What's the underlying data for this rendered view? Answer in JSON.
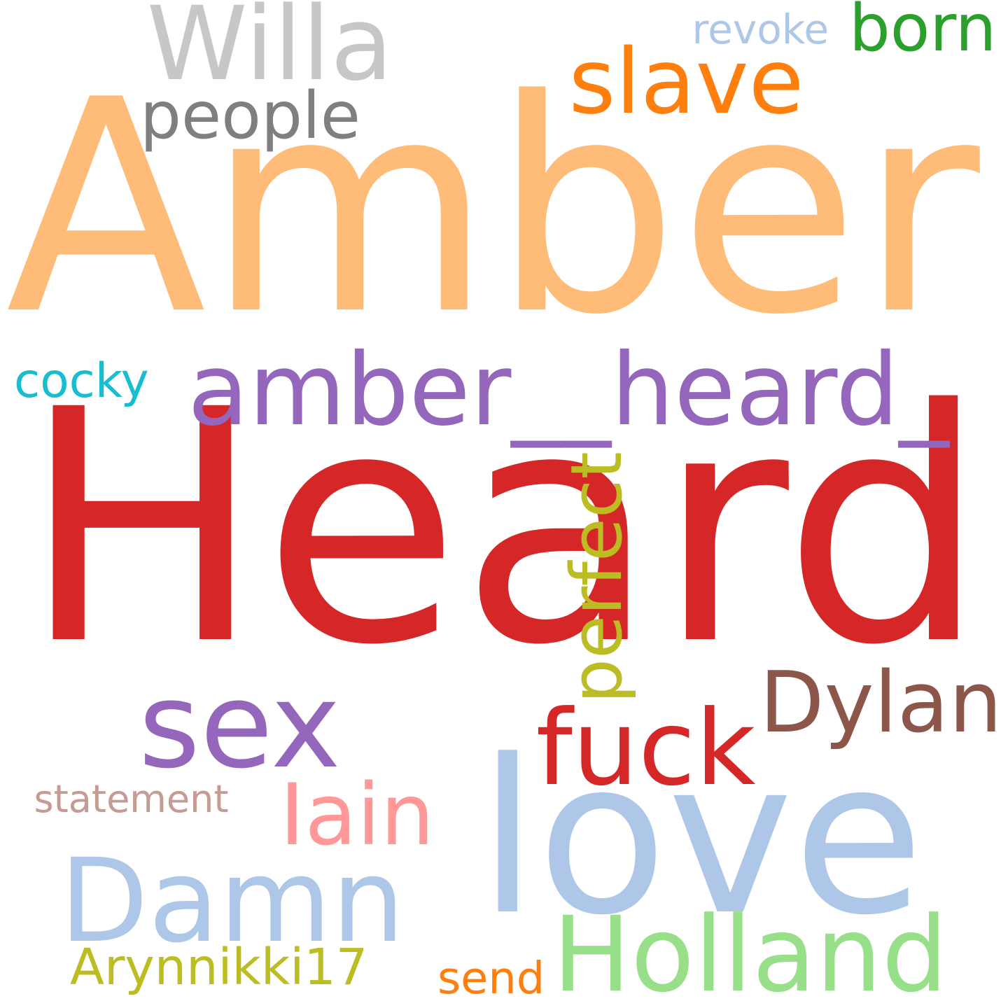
{
  "words": [
    {
      "id": "heard",
      "text": "Heard",
      "color": "#d62728",
      "orientation": "horizontal"
    },
    {
      "id": "amber",
      "text": "Amber",
      "color": "#ffbb78",
      "orientation": "horizontal"
    },
    {
      "id": "love",
      "text": "love",
      "color": "#aec7e8",
      "orientation": "horizontal"
    },
    {
      "id": "sex",
      "text": "sex",
      "color": "#9467bd",
      "orientation": "horizontal"
    },
    {
      "id": "damn",
      "text": "Damn",
      "color": "#aec7e8",
      "orientation": "horizontal"
    },
    {
      "id": "amber-heard",
      "text": "amber__heard_",
      "color": "#9467bd",
      "orientation": "horizontal"
    },
    {
      "id": "willa",
      "text": "Willa",
      "color": "#c7c7c7",
      "orientation": "horizontal"
    },
    {
      "id": "slave",
      "text": "slave",
      "color": "#ff7f0e",
      "orientation": "horizontal"
    },
    {
      "id": "fuck",
      "text": "fuck",
      "color": "#d62728",
      "orientation": "horizontal"
    },
    {
      "id": "holland",
      "text": "Holland",
      "color": "#98df8a",
      "orientation": "horizontal"
    },
    {
      "id": "dylan",
      "text": "Dylan",
      "color": "#8c564b",
      "orientation": "horizontal"
    },
    {
      "id": "iain",
      "text": "Iain",
      "color": "#ff9896",
      "orientation": "horizontal"
    },
    {
      "id": "people",
      "text": "people",
      "color": "#7f7f7f",
      "orientation": "horizontal"
    },
    {
      "id": "perfect",
      "text": "perfect",
      "color": "#bcbd22",
      "orientation": "vertical"
    },
    {
      "id": "born",
      "text": "born",
      "color": "#2ca02c",
      "orientation": "horizontal"
    },
    {
      "id": "statement",
      "text": "statement",
      "color": "#c49c94",
      "orientation": "horizontal"
    },
    {
      "id": "arynnikki17",
      "text": "Arynnikki17",
      "color": "#bcbd22",
      "orientation": "horizontal"
    },
    {
      "id": "cocky",
      "text": "cocky",
      "color": "#17becf",
      "orientation": "horizontal"
    },
    {
      "id": "revoke",
      "text": "revoke",
      "color": "#aec7e8",
      "orientation": "horizontal"
    },
    {
      "id": "send",
      "text": "send",
      "color": "#ff7f0e",
      "orientation": "horizontal"
    }
  ]
}
